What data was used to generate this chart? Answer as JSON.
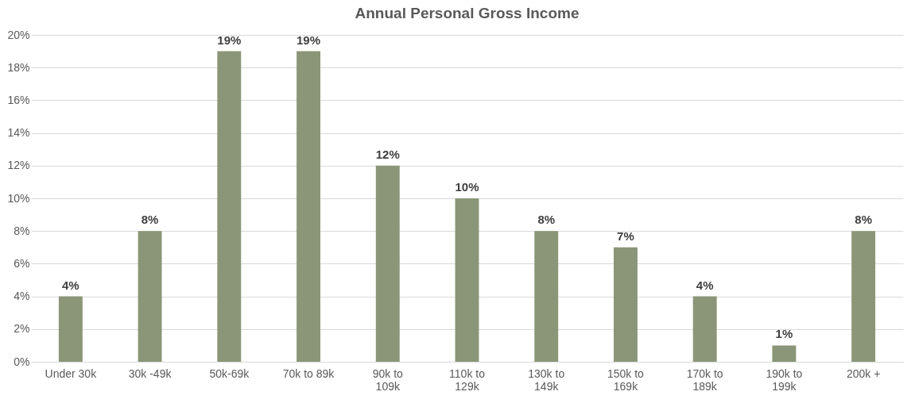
{
  "chart_data": {
    "type": "bar",
    "title": "Annual Personal Gross Income",
    "categories": [
      "Under 30k",
      "30k -49k",
      "50k-69k",
      "70k to 89k",
      "90k to 109k",
      "110k to 129k",
      "130k to 149k",
      "150k to 169k",
      "170k to 189k",
      "190k to 199k",
      "200k +"
    ],
    "values": [
      4,
      8,
      19,
      19,
      12,
      10,
      8,
      7,
      4,
      1,
      8
    ],
    "value_labels": [
      "4%",
      "8%",
      "19%",
      "19%",
      "12%",
      "10%",
      "8%",
      "7%",
      "4%",
      "1%",
      "8%"
    ],
    "color": "#8a9677",
    "ylim": [
      0,
      20
    ],
    "yticks": [
      {
        "value": 0,
        "label": "0%"
      },
      {
        "value": 2,
        "label": "2%"
      },
      {
        "value": 4,
        "label": "4%"
      },
      {
        "value": 6,
        "label": "6%"
      },
      {
        "value": 8,
        "label": "8%"
      },
      {
        "value": 10,
        "label": "10%"
      },
      {
        "value": 12,
        "label": "12%"
      },
      {
        "value": 14,
        "label": "14%"
      },
      {
        "value": 16,
        "label": "16%"
      },
      {
        "value": 18,
        "label": "18%"
      },
      {
        "value": 20,
        "label": "20%"
      }
    ],
    "grid": "y"
  }
}
